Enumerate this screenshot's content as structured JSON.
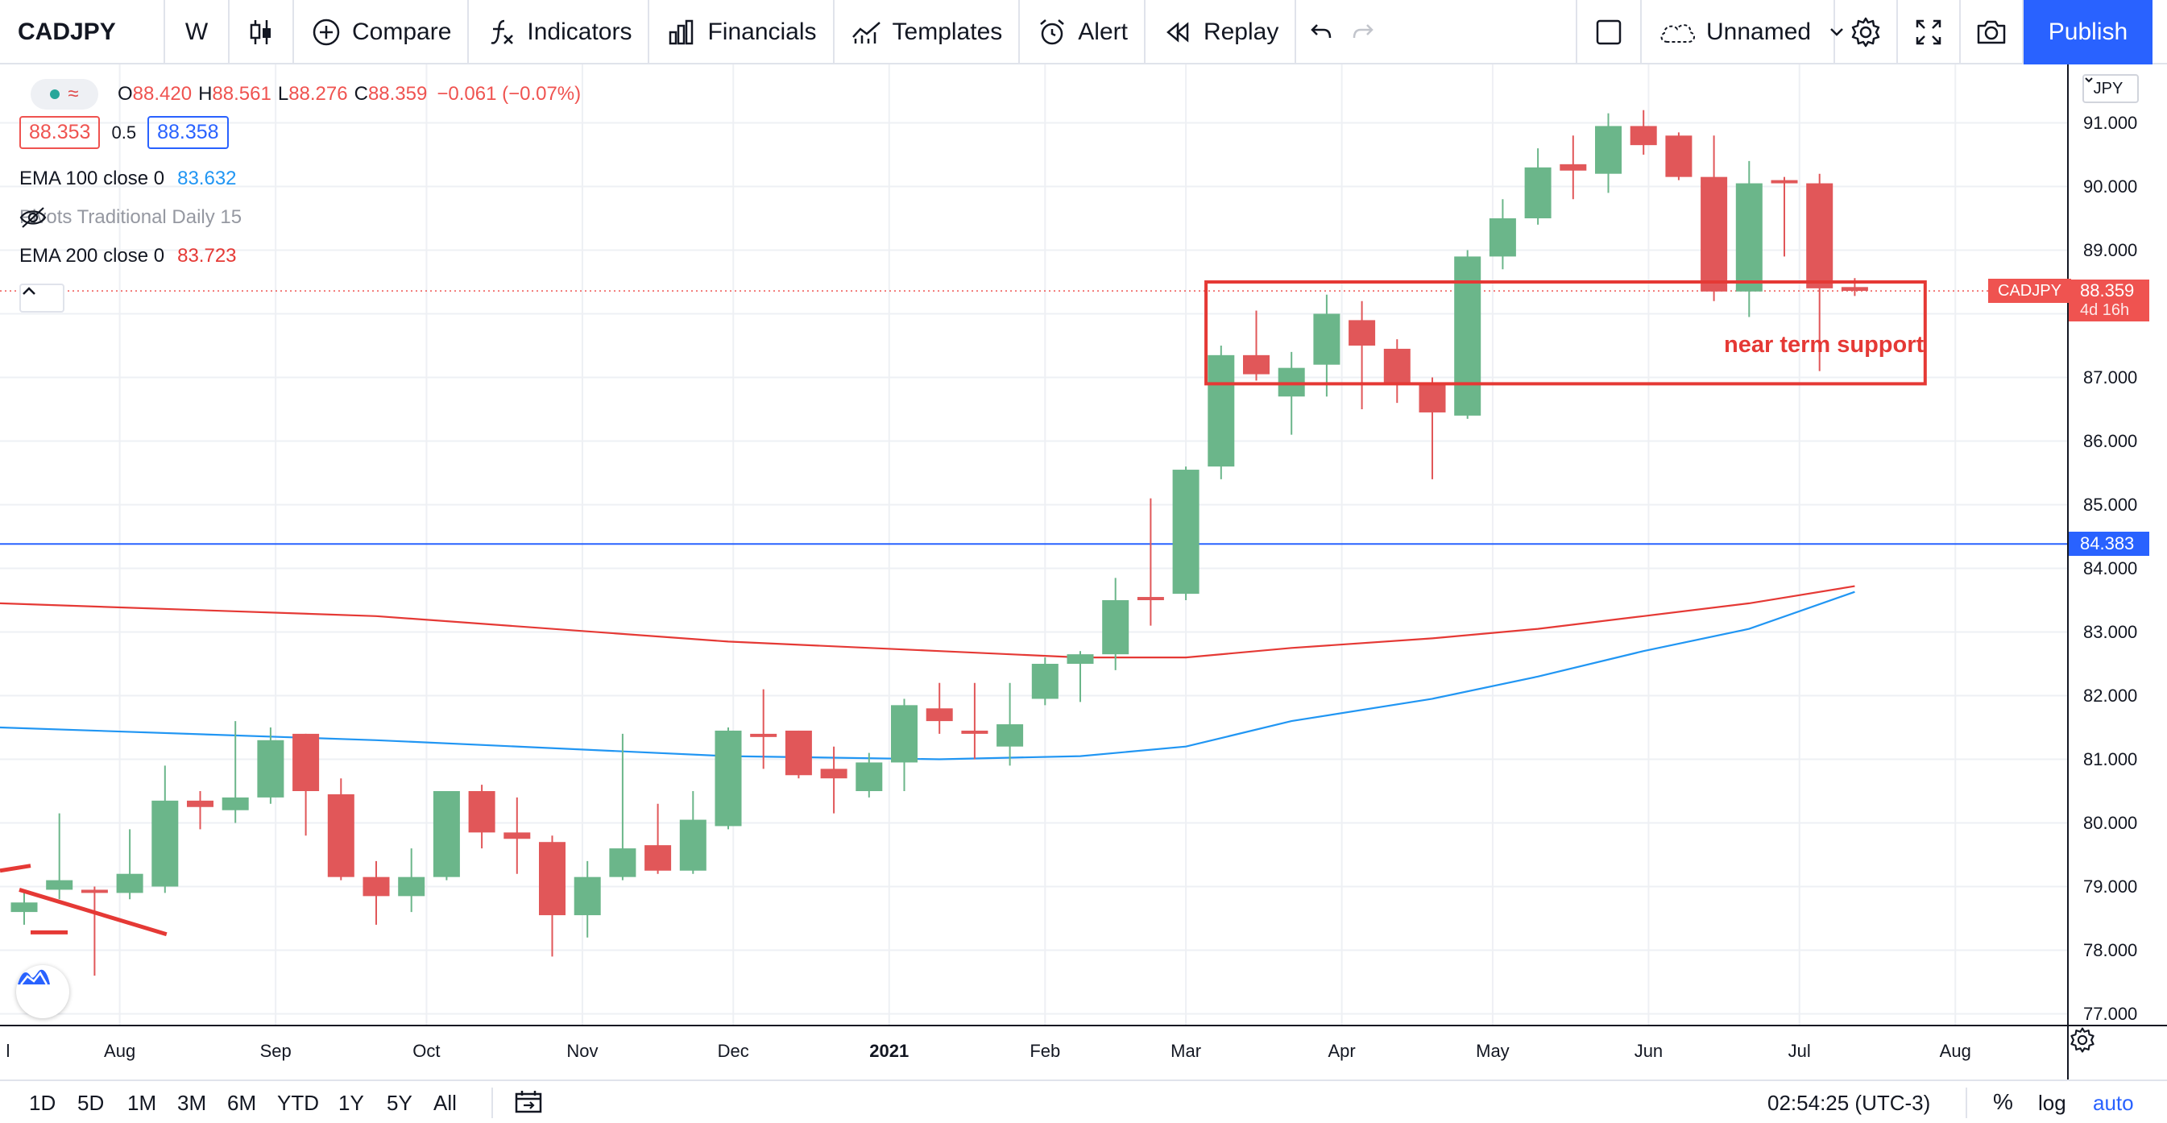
{
  "toolbar": {
    "symbol": "CADJPY",
    "interval": "W",
    "compare": "Compare",
    "indicators": "Indicators",
    "financials": "Financials",
    "templates": "Templates",
    "alert": "Alert",
    "replay": "Replay",
    "layout_name": "Unnamed",
    "publish": "Publish"
  },
  "legend": {
    "open_label": "O",
    "open": "88.420",
    "high_label": "H",
    "high": "88.561",
    "low_label": "L",
    "low": "88.276",
    "close_label": "C",
    "close": "88.359",
    "change": "−0.061 (−0.07%)",
    "bid": "88.353",
    "spread": "0.5",
    "ask": "88.358",
    "indicators": [
      {
        "name": "EMA 100 close 0",
        "value": "83.632",
        "color": "#2196f3"
      },
      {
        "name": "Pivots Traditional Daily 15",
        "value": "",
        "hidden": true
      },
      {
        "name": "EMA 200 close 0",
        "value": "83.723",
        "color": "#e53935"
      }
    ]
  },
  "price_scale": {
    "currency": "JPY",
    "ticks": [
      "91.000",
      "90.000",
      "89.000",
      "88.000",
      "87.000",
      "86.000",
      "85.000",
      "84.000",
      "83.000",
      "82.000",
      "81.000",
      "80.000",
      "79.000",
      "78.000",
      "77.000"
    ],
    "current_price": "88.359",
    "countdown": "4d 16h",
    "symbol_tag": "CADJPY",
    "hline_price": "84.383"
  },
  "time_axis": {
    "labels": [
      "l",
      "Aug",
      "Sep",
      "Oct",
      "Nov",
      "Dec",
      "2021",
      "Feb",
      "Mar",
      "Apr",
      "May",
      "Jun",
      "Jul",
      "Aug"
    ]
  },
  "annotation": {
    "text": "near term support",
    "color": "#e53935"
  },
  "bottom": {
    "ranges": [
      "1D",
      "5D",
      "1M",
      "3M",
      "6M",
      "YTD",
      "1Y",
      "5Y",
      "All"
    ],
    "clock": "02:54:25 (UTC-3)",
    "percent": "%",
    "log": "log",
    "auto": "auto"
  },
  "colors": {
    "up": "#6bb68a",
    "down": "#e15759",
    "accent": "#2962ff",
    "ema100": "#2196f3",
    "ema200": "#e53935"
  },
  "chart_data": {
    "type": "candlestick",
    "symbol": "CADJPY",
    "interval": "weekly",
    "ylim": [
      76.8,
      91.5
    ],
    "candles": [
      {
        "x": "2020-07-13",
        "o": 78.6,
        "h": 78.9,
        "l": 78.4,
        "c": 78.75
      },
      {
        "x": "2020-07-20",
        "o": 78.95,
        "h": 80.15,
        "l": 78.8,
        "c": 79.1
      },
      {
        "x": "2020-07-27",
        "o": 78.95,
        "h": 79.0,
        "l": 77.6,
        "c": 78.9
      },
      {
        "x": "2020-08-03",
        "o": 78.9,
        "h": 79.9,
        "l": 78.8,
        "c": 79.2
      },
      {
        "x": "2020-08-10",
        "o": 79.0,
        "h": 80.9,
        "l": 78.9,
        "c": 80.35
      },
      {
        "x": "2020-08-17",
        "o": 80.35,
        "h": 80.5,
        "l": 79.9,
        "c": 80.25
      },
      {
        "x": "2020-08-24",
        "o": 80.2,
        "h": 81.6,
        "l": 80.0,
        "c": 80.4
      },
      {
        "x": "2020-08-31",
        "o": 80.4,
        "h": 81.5,
        "l": 80.3,
        "c": 81.3
      },
      {
        "x": "2020-09-07",
        "o": 81.4,
        "h": 81.4,
        "l": 79.8,
        "c": 80.5
      },
      {
        "x": "2020-09-14",
        "o": 80.45,
        "h": 80.7,
        "l": 79.1,
        "c": 79.15
      },
      {
        "x": "2020-09-21",
        "o": 79.15,
        "h": 79.4,
        "l": 78.4,
        "c": 78.85
      },
      {
        "x": "2020-09-28",
        "o": 78.85,
        "h": 79.6,
        "l": 78.6,
        "c": 79.15
      },
      {
        "x": "2020-10-05",
        "o": 79.15,
        "h": 80.5,
        "l": 79.1,
        "c": 80.5
      },
      {
        "x": "2020-10-12",
        "o": 80.5,
        "h": 80.6,
        "l": 79.6,
        "c": 79.85
      },
      {
        "x": "2020-10-19",
        "o": 79.85,
        "h": 80.4,
        "l": 79.2,
        "c": 79.75
      },
      {
        "x": "2020-10-26",
        "o": 79.7,
        "h": 79.8,
        "l": 77.9,
        "c": 78.55
      },
      {
        "x": "2020-11-02",
        "o": 78.55,
        "h": 79.4,
        "l": 78.2,
        "c": 79.15
      },
      {
        "x": "2020-11-09",
        "o": 79.15,
        "h": 81.4,
        "l": 79.1,
        "c": 79.6
      },
      {
        "x": "2020-11-16",
        "o": 79.65,
        "h": 80.3,
        "l": 79.2,
        "c": 79.25
      },
      {
        "x": "2020-11-23",
        "o": 79.25,
        "h": 80.5,
        "l": 79.2,
        "c": 80.05
      },
      {
        "x": "2020-11-30",
        "o": 79.95,
        "h": 81.5,
        "l": 79.9,
        "c": 81.45
      },
      {
        "x": "2020-12-07",
        "o": 81.4,
        "h": 82.1,
        "l": 80.85,
        "c": 81.35
      },
      {
        "x": "2020-12-14",
        "o": 81.45,
        "h": 81.45,
        "l": 80.7,
        "c": 80.75
      },
      {
        "x": "2020-12-21",
        "o": 80.85,
        "h": 81.2,
        "l": 80.15,
        "c": 80.7
      },
      {
        "x": "2020-12-28",
        "o": 80.5,
        "h": 81.1,
        "l": 80.4,
        "c": 80.95
      },
      {
        "x": "2021-01-04",
        "o": 80.95,
        "h": 81.95,
        "l": 80.5,
        "c": 81.85
      },
      {
        "x": "2021-01-11",
        "o": 81.8,
        "h": 82.2,
        "l": 81.4,
        "c": 81.6
      },
      {
        "x": "2021-01-18",
        "o": 81.45,
        "h": 82.2,
        "l": 81.0,
        "c": 81.4
      },
      {
        "x": "2021-01-25",
        "o": 81.2,
        "h": 82.2,
        "l": 80.9,
        "c": 81.55
      },
      {
        "x": "2021-02-01",
        "o": 81.95,
        "h": 82.6,
        "l": 81.85,
        "c": 82.5
      },
      {
        "x": "2021-02-08",
        "o": 82.5,
        "h": 82.7,
        "l": 81.9,
        "c": 82.65
      },
      {
        "x": "2021-02-15",
        "o": 82.65,
        "h": 83.85,
        "l": 82.4,
        "c": 83.5
      },
      {
        "x": "2021-02-22",
        "o": 83.55,
        "h": 85.1,
        "l": 83.1,
        "c": 83.5
      },
      {
        "x": "2021-03-01",
        "o": 83.6,
        "h": 85.6,
        "l": 83.5,
        "c": 85.55
      },
      {
        "x": "2021-03-08",
        "o": 85.6,
        "h": 87.5,
        "l": 85.4,
        "c": 87.35
      },
      {
        "x": "2021-03-15",
        "o": 87.35,
        "h": 88.05,
        "l": 86.95,
        "c": 87.05
      },
      {
        "x": "2021-03-22",
        "o": 86.7,
        "h": 87.4,
        "l": 86.1,
        "c": 87.15
      },
      {
        "x": "2021-03-29",
        "o": 87.2,
        "h": 88.3,
        "l": 86.7,
        "c": 88.0
      },
      {
        "x": "2021-04-05",
        "o": 87.9,
        "h": 88.2,
        "l": 86.5,
        "c": 87.5
      },
      {
        "x": "2021-04-12",
        "o": 87.45,
        "h": 87.6,
        "l": 86.6,
        "c": 86.9
      },
      {
        "x": "2021-04-19",
        "o": 86.9,
        "h": 87.0,
        "l": 85.4,
        "c": 86.45
      },
      {
        "x": "2021-04-26",
        "o": 86.4,
        "h": 89.0,
        "l": 86.35,
        "c": 88.9
      },
      {
        "x": "2021-05-03",
        "o": 88.9,
        "h": 89.8,
        "l": 88.7,
        "c": 89.5
      },
      {
        "x": "2021-05-10",
        "o": 89.5,
        "h": 90.6,
        "l": 89.4,
        "c": 90.3
      },
      {
        "x": "2021-05-17",
        "o": 90.35,
        "h": 90.8,
        "l": 89.8,
        "c": 90.25
      },
      {
        "x": "2021-05-24",
        "o": 90.2,
        "h": 91.15,
        "l": 89.9,
        "c": 90.95
      },
      {
        "x": "2021-05-31",
        "o": 90.95,
        "h": 91.2,
        "l": 90.5,
        "c": 90.65
      },
      {
        "x": "2021-06-07",
        "o": 90.8,
        "h": 90.85,
        "l": 90.1,
        "c": 90.15
      },
      {
        "x": "2021-06-14",
        "o": 90.15,
        "h": 90.8,
        "l": 88.2,
        "c": 88.35
      },
      {
        "x": "2021-06-21",
        "o": 88.35,
        "h": 90.4,
        "l": 87.95,
        "c": 90.05
      },
      {
        "x": "2021-06-28",
        "o": 90.1,
        "h": 90.15,
        "l": 88.9,
        "c": 90.05
      },
      {
        "x": "2021-07-05",
        "o": 90.05,
        "h": 90.2,
        "l": 87.1,
        "c": 88.4
      },
      {
        "x": "2021-07-12",
        "o": 88.42,
        "h": 88.56,
        "l": 88.28,
        "c": 88.36
      }
    ],
    "ema100": [
      [
        0,
        81.5
      ],
      [
        10,
        81.3
      ],
      [
        20,
        81.05
      ],
      [
        26,
        81.0
      ],
      [
        30,
        81.05
      ],
      [
        33,
        81.2
      ],
      [
        36,
        81.6
      ],
      [
        40,
        81.95
      ],
      [
        43,
        82.3
      ],
      [
        46,
        82.7
      ],
      [
        49,
        83.05
      ],
      [
        52,
        83.63
      ]
    ],
    "ema200": [
      [
        0,
        83.45
      ],
      [
        10,
        83.25
      ],
      [
        20,
        82.85
      ],
      [
        26,
        82.7
      ],
      [
        30,
        82.6
      ],
      [
        33,
        82.6
      ],
      [
        36,
        82.75
      ],
      [
        40,
        82.9
      ],
      [
        43,
        83.05
      ],
      [
        46,
        83.25
      ],
      [
        49,
        83.45
      ],
      [
        52,
        83.72
      ]
    ],
    "horizontal_line": 84.383,
    "current_price_line": 88.359,
    "support_box": {
      "x_start": "2021-03-05",
      "x_end": "2021-07-26",
      "y_low": 86.9,
      "y_high": 88.5
    },
    "trend_line": {
      "x_start": "2020-07-13",
      "y_start": 78.95,
      "x_end": "2020-08-10",
      "y_end": 78.25
    }
  }
}
